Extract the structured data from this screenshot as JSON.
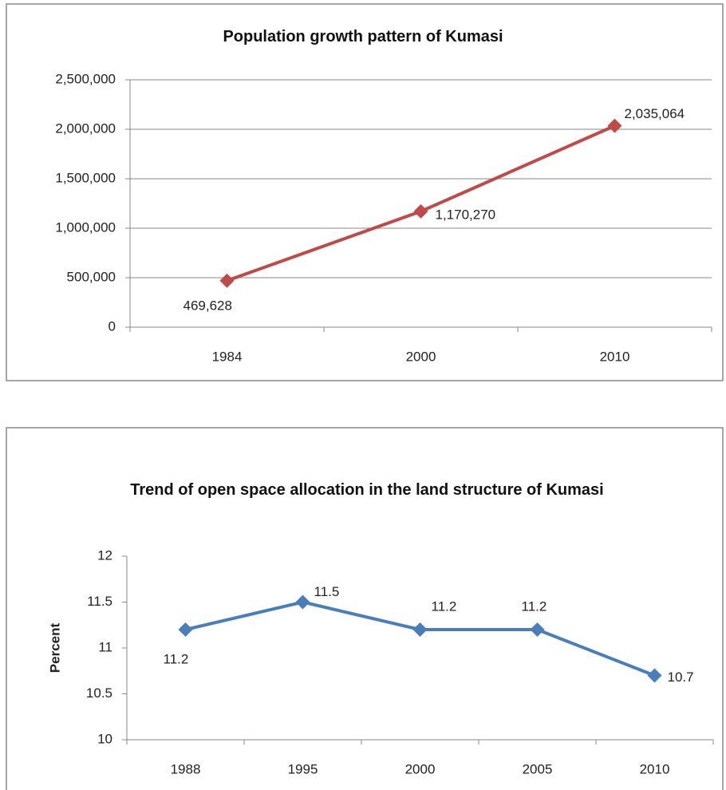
{
  "chart_data": [
    {
      "type": "line",
      "title": "Population growth pattern of Kumasi",
      "categories": [
        "1984",
        "2000",
        "2010"
      ],
      "series": [
        {
          "name": "Population",
          "color": "#be4b48",
          "values": [
            469628,
            1170270,
            2035064
          ],
          "value_labels": [
            "469,628",
            "1,170,270",
            "2,035,064"
          ]
        }
      ],
      "ylim": [
        0,
        2500000
      ],
      "yticks": [
        0,
        {
          "value": 500000,
          "label": "500,000"
        },
        {
          "value": 1000000,
          "label": "1,000,000"
        },
        {
          "value": 1500000,
          "label": "1,500,000"
        },
        {
          "value": 2000000,
          "label": "2,000,000"
        },
        {
          "value": 2500000,
          "label": "2,500,000"
        }
      ],
      "grid": true
    },
    {
      "type": "line",
      "title": "Trend of open space allocation in the land structure of Kumasi",
      "y_label": "Percent",
      "categories": [
        "1988",
        "1995",
        "2000",
        "2005",
        "2010"
      ],
      "series": [
        {
          "name": "Open space",
          "color": "#4a7ebb",
          "values": [
            11.2,
            11.5,
            11.2,
            11.2,
            10.7
          ]
        }
      ],
      "ylim": [
        10,
        12
      ],
      "yticks": [
        10,
        10.5,
        11,
        11.5,
        12
      ],
      "grid": false
    }
  ]
}
